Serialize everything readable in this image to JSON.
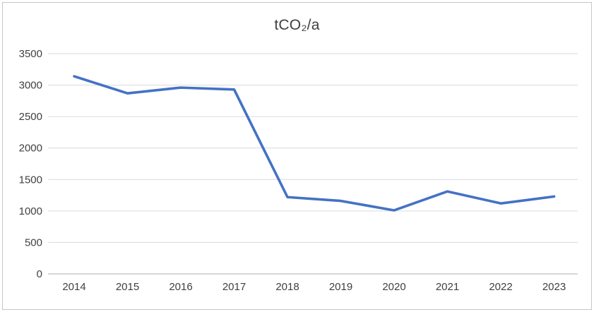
{
  "chart": {
    "title": "tCO₂/a"
  },
  "chart_data": {
    "type": "line",
    "title": "tCO₂/a",
    "categories": [
      "2014",
      "2015",
      "2016",
      "2017",
      "2018",
      "2019",
      "2020",
      "2021",
      "2022",
      "2023"
    ],
    "series": [
      {
        "name": "tCO2/a",
        "values": [
          3140,
          2870,
          2960,
          2930,
          1220,
          1160,
          1010,
          1310,
          1120,
          1230
        ]
      }
    ],
    "xlabel": "",
    "ylabel": "",
    "ylim": [
      0,
      3500
    ],
    "ytick_interval": 500,
    "yticks": [
      "0",
      "500",
      "1000",
      "1500",
      "2000",
      "2500",
      "3000",
      "3500"
    ],
    "grid": true,
    "legend": "none",
    "colors": {
      "line": "#4472C4",
      "gridline": "#D9D9D9",
      "axis_line": "#BFBFBF",
      "tick_label": "#404040",
      "title": "#404040",
      "frame_border": "#C6C6C6",
      "background": "#FFFFFF"
    }
  }
}
